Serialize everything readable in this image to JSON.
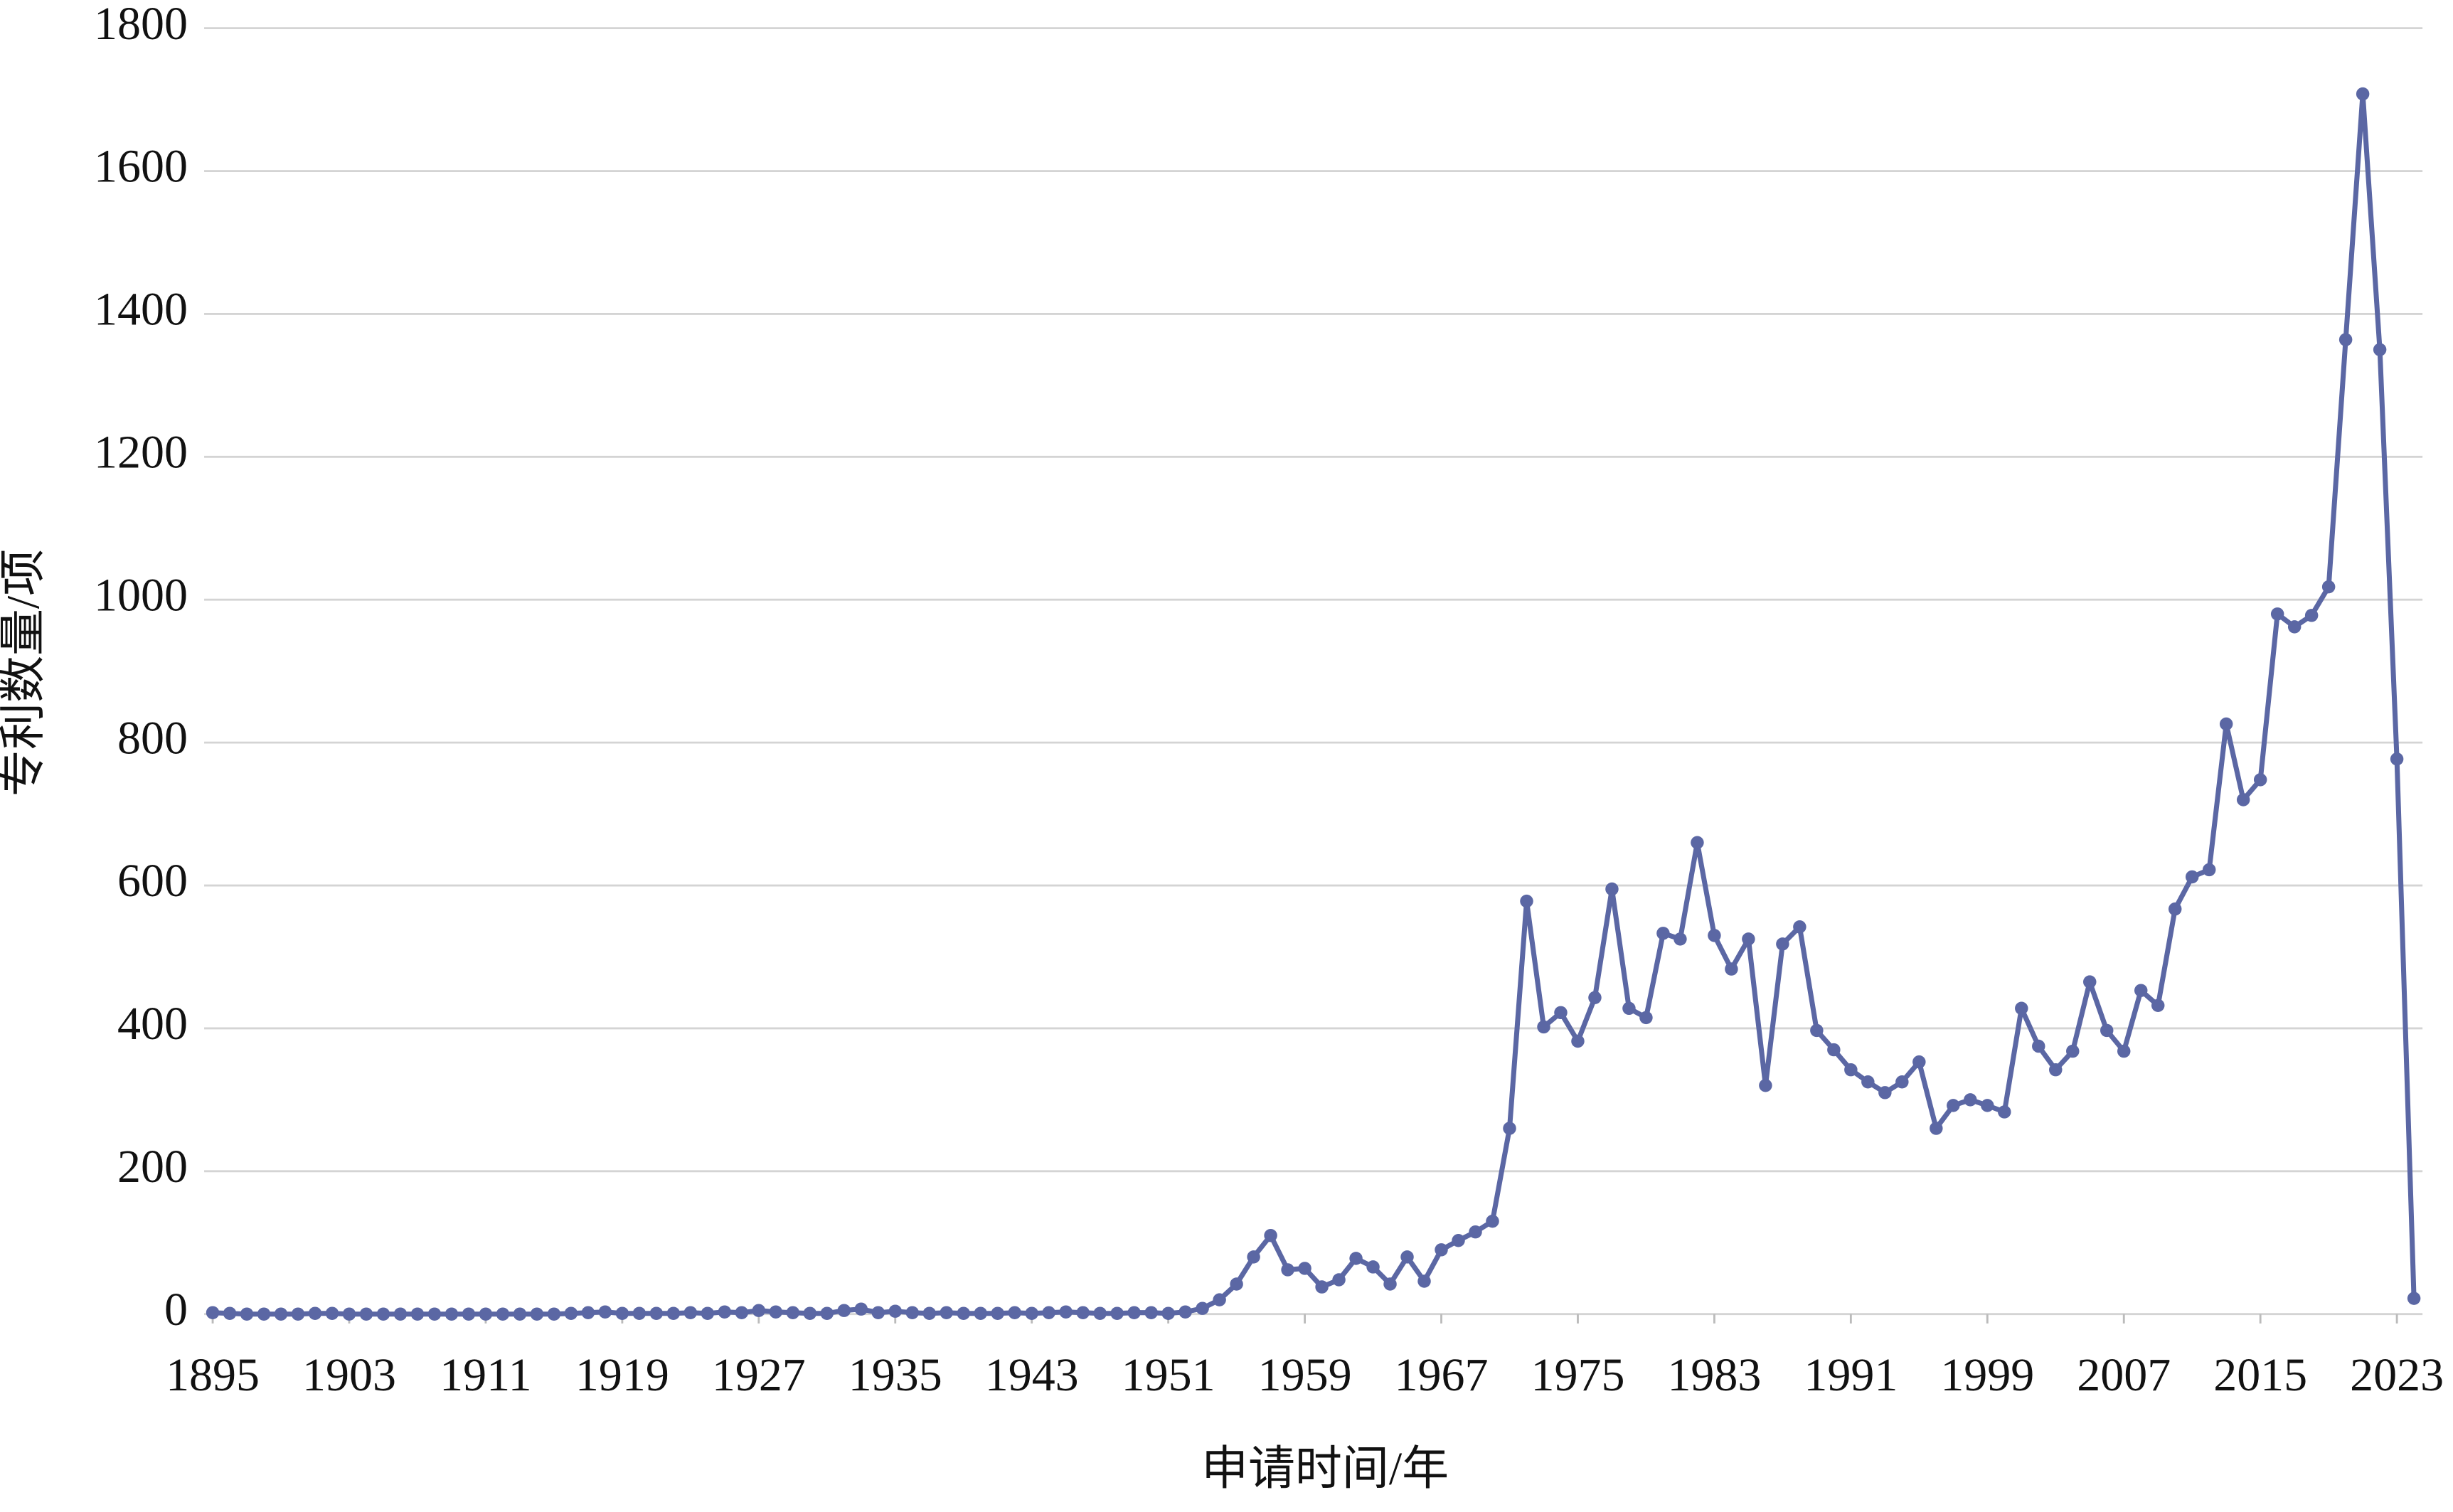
{
  "chart_data": {
    "type": "line",
    "x_label": "申请时间/年",
    "y_label": "专利数量/项",
    "x": [
      1895,
      1896,
      1897,
      1898,
      1899,
      1900,
      1901,
      1902,
      1903,
      1904,
      1905,
      1906,
      1907,
      1908,
      1909,
      1910,
      1911,
      1912,
      1913,
      1914,
      1915,
      1916,
      1917,
      1918,
      1919,
      1920,
      1921,
      1922,
      1923,
      1924,
      1925,
      1926,
      1927,
      1928,
      1929,
      1930,
      1931,
      1932,
      1933,
      1934,
      1935,
      1936,
      1937,
      1938,
      1939,
      1940,
      1941,
      1942,
      1943,
      1944,
      1945,
      1946,
      1947,
      1948,
      1949,
      1950,
      1951,
      1952,
      1953,
      1954,
      1955,
      1956,
      1957,
      1958,
      1959,
      1960,
      1961,
      1962,
      1963,
      1964,
      1965,
      1966,
      1967,
      1968,
      1969,
      1970,
      1971,
      1972,
      1973,
      1974,
      1975,
      1976,
      1977,
      1978,
      1979,
      1980,
      1981,
      1982,
      1983,
      1984,
      1985,
      1986,
      1987,
      1988,
      1989,
      1990,
      1991,
      1992,
      1993,
      1994,
      1995,
      1996,
      1997,
      1998,
      1999,
      2000,
      2001,
      2002,
      2003,
      2004,
      2005,
      2006,
      2007,
      2008,
      2009,
      2010,
      2011,
      2012,
      2013,
      2014,
      2015,
      2016,
      2017,
      2018,
      2019,
      2020,
      2021,
      2022,
      2023,
      2024
    ],
    "series": [
      {
        "color": "#5b67a4",
        "values": [
          2,
          1,
          0,
          0,
          0,
          0,
          1,
          1,
          0,
          0,
          0,
          0,
          0,
          0,
          0,
          0,
          0,
          0,
          0,
          0,
          0,
          1,
          2,
          3,
          1,
          1,
          1,
          1,
          2,
          1,
          3,
          2,
          5,
          3,
          2,
          1,
          1,
          5,
          7,
          2,
          4,
          2,
          1,
          2,
          1,
          1,
          1,
          2,
          1,
          2,
          3,
          2,
          1,
          1,
          2,
          2,
          1,
          3,
          8,
          20,
          42,
          80,
          110,
          62,
          64,
          38,
          48,
          78,
          66,
          42,
          80,
          46,
          90,
          103,
          115,
          130,
          260,
          578,
          402,
          422,
          382,
          443,
          595,
          428,
          415,
          533,
          525,
          660,
          530,
          483,
          525,
          320,
          518,
          542,
          397,
          370,
          342,
          325,
          310,
          325,
          353,
          260,
          292,
          300,
          292,
          283,
          428,
          375,
          342,
          368,
          465,
          397,
          368,
          453,
          432,
          567,
          612,
          622,
          826,
          720,
          748,
          980,
          962,
          978,
          1018,
          1364,
          1708,
          1350,
          777,
          22
        ]
      }
    ],
    "xlim": [
      1894.5,
      2024.5
    ],
    "xticks": [
      1895,
      1903,
      1911,
      1919,
      1927,
      1935,
      1943,
      1951,
      1959,
      1967,
      1975,
      1983,
      1991,
      1999,
      2007,
      2015,
      2023
    ],
    "ylim": [
      0,
      1800
    ],
    "yticks": [
      0,
      200,
      400,
      600,
      800,
      1000,
      1200,
      1400,
      1600,
      1800
    ],
    "grid": true
  }
}
